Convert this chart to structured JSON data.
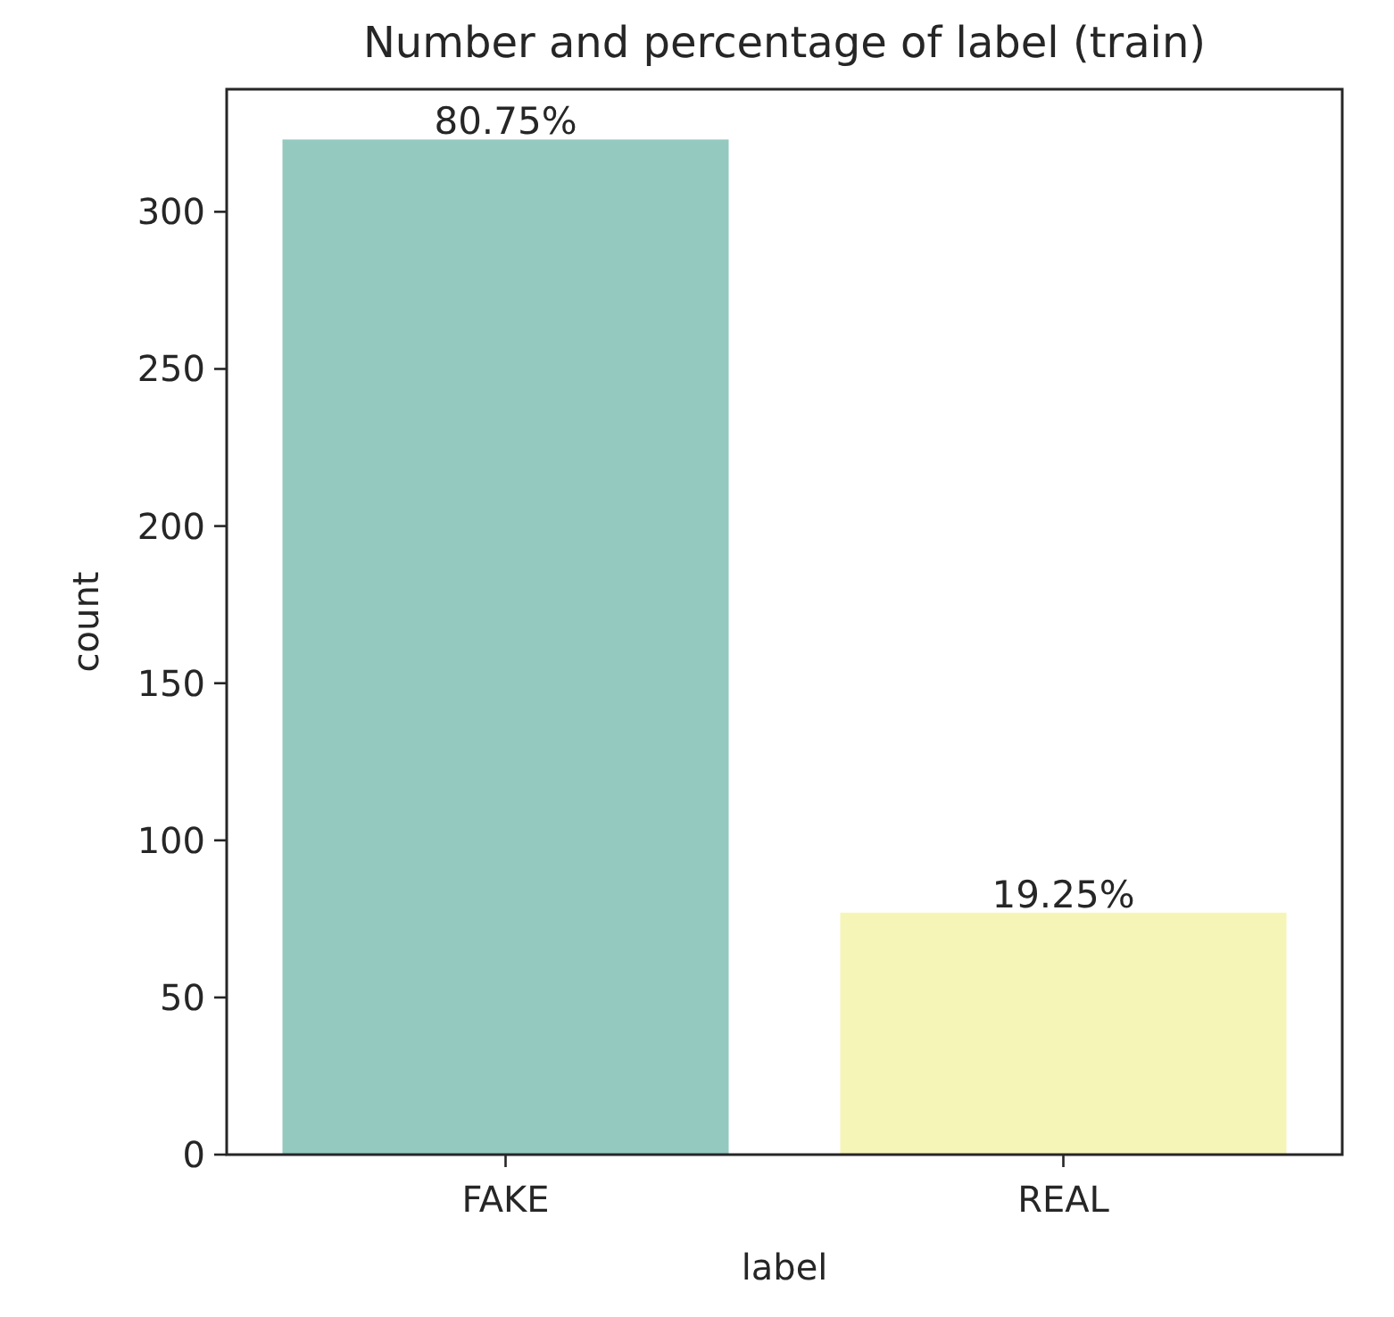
{
  "chart_data": {
    "type": "bar",
    "title": "Number and percentage of label (train)",
    "xlabel": "label",
    "ylabel": "count",
    "categories": [
      "FAKE",
      "REAL"
    ],
    "values": [
      323,
      77
    ],
    "colors": [
      "#93c9bf",
      "#f5f5b8"
    ],
    "annotations": [
      {
        "text": "80.75%",
        "x": "FAKE",
        "y": 323
      },
      {
        "text": "19.25%",
        "x": "REAL",
        "y": 77
      }
    ],
    "ylim": [
      0,
      339
    ],
    "yticks": [
      0,
      50,
      100,
      150,
      200,
      250,
      300
    ]
  }
}
